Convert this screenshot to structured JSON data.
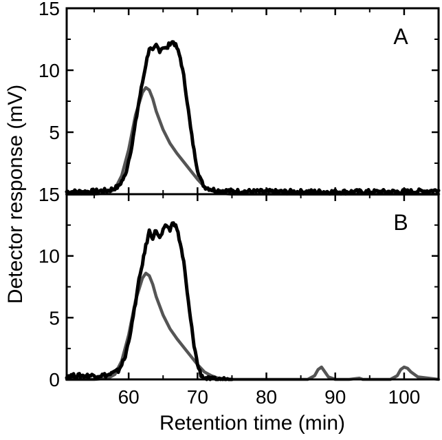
{
  "chart_data": {
    "type": "line",
    "xlabel": "Retention time (min)",
    "ylabel": "Detector response (mV)",
    "xlim": [
      51,
      105
    ],
    "ylim": [
      0,
      15
    ],
    "x_ticks": [
      60,
      70,
      80,
      90,
      100
    ],
    "y_tick_labels": [
      "15",
      "10",
      "5"
    ],
    "y_tick_labels_bottom": [
      "15",
      "10",
      "5",
      "0"
    ],
    "colors": {
      "black_series": "#000000",
      "gray_series": "#555555"
    },
    "panels": [
      {
        "label": "A",
        "series": [
          {
            "name": "black",
            "x": [
              51,
              54,
              57,
              58.5,
              59.5,
              60.5,
              61.5,
              62.5,
              63,
              63.5,
              64,
              64.5,
              65,
              65.5,
              66,
              66.5,
              67,
              67.5,
              68,
              68.5,
              69,
              69.5,
              70,
              70.5,
              71,
              72,
              73,
              75,
              80,
              85,
              90,
              95,
              100,
              105
            ],
            "y": [
              0.2,
              0.2,
              0.3,
              0.6,
              1.5,
              4.0,
              7.5,
              10.5,
              11.8,
              11.5,
              12.0,
              11.6,
              11.9,
              11.7,
              12.2,
              12.3,
              11.8,
              11.0,
              9.5,
              7.5,
              5.3,
              3.5,
              2.0,
              1.1,
              0.6,
              0.4,
              0.3,
              0.25,
              0.2,
              0.2,
              0.2,
              0.2,
              0.2,
              0.3
            ]
          },
          {
            "name": "gray",
            "x": [
              51,
              55,
              57,
              58,
              59,
              60,
              61,
              62,
              62.5,
              63,
              63.5,
              64,
              65,
              66,
              67,
              68,
              69,
              70,
              71,
              72,
              73,
              75,
              80,
              90,
              100,
              105
            ],
            "y": [
              0,
              0,
              0.1,
              0.4,
              1.5,
              3.6,
              6.4,
              8.2,
              8.6,
              8.4,
              7.7,
              6.7,
              5.2,
              4.1,
              3.3,
              2.6,
              1.9,
              1.2,
              0.6,
              0.3,
              0.1,
              0,
              0,
              0,
              0,
              0
            ]
          }
        ]
      },
      {
        "label": "B",
        "series": [
          {
            "name": "black",
            "x": [
              51,
              54,
              57,
              58.5,
              59.5,
              60.5,
              61.5,
              62.5,
              63,
              63.5,
              64,
              64.5,
              65,
              65.5,
              66,
              66.5,
              67,
              67.5,
              68,
              68.5,
              69,
              69.5,
              70,
              70.5,
              71,
              72,
              73,
              75
            ],
            "y": [
              0.3,
              0.3,
              0.35,
              0.7,
              1.8,
              4.5,
              8.0,
              10.8,
              12.0,
              11.5,
              12.1,
              11.4,
              12.0,
              12.5,
              12.1,
              12.8,
              12.2,
              11.0,
              9.5,
              7.0,
              4.8,
              2.8,
              1.2,
              0.4,
              0.1,
              0,
              0,
              0
            ]
          },
          {
            "name": "gray",
            "x": [
              51,
              55,
              57,
              58,
              59,
              60,
              61,
              62,
              62.5,
              63,
              63.5,
              64,
              65,
              66,
              67,
              68,
              69,
              70,
              71,
              72,
              73,
              75,
              80,
              86,
              87,
              87.5,
              88,
              88.5,
              89,
              90,
              92,
              93.5,
              94,
              95,
              98,
              99,
              99.5,
              100,
              100.5,
              101,
              102,
              105
            ],
            "y": [
              0,
              0,
              0.1,
              0.4,
              1.5,
              3.6,
              6.4,
              8.2,
              8.6,
              8.4,
              7.7,
              6.7,
              5.2,
              4.1,
              3.3,
              2.6,
              1.9,
              1.2,
              0.6,
              0.3,
              0.1,
              0,
              0,
              0,
              0.3,
              0.8,
              1.0,
              0.6,
              0.2,
              0,
              0,
              0.1,
              0,
              0,
              0,
              0.3,
              0.8,
              1.0,
              0.9,
              0.6,
              0.2,
              0
            ]
          }
        ]
      }
    ]
  }
}
